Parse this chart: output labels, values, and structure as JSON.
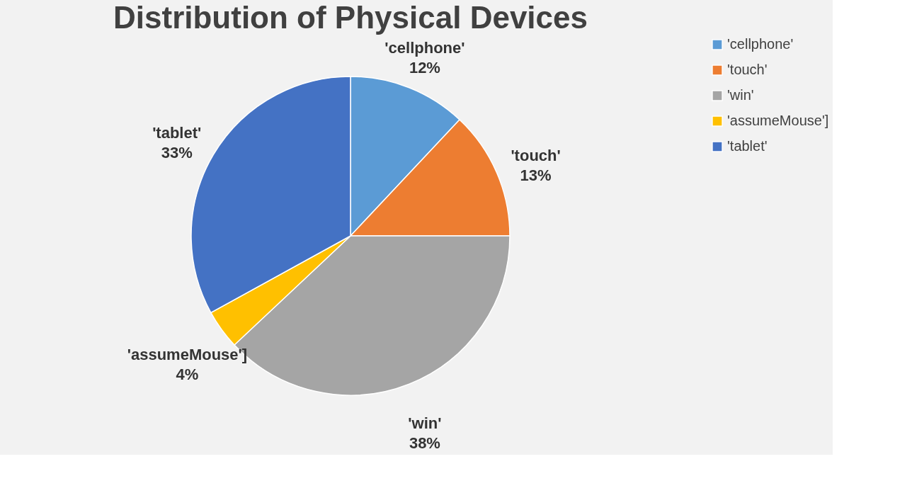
{
  "chart_data": {
    "type": "pie",
    "title": "Distribution of Physical Devices",
    "categories": [
      "'cellphone'",
      "'touch'",
      "'win'",
      "'assumeMouse']",
      "'tablet'"
    ],
    "values": [
      12,
      13,
      38,
      4,
      33
    ],
    "value_labels": [
      "12%",
      "13%",
      "38%",
      "4%",
      "33%"
    ],
    "colors": [
      "#5b9bd5",
      "#ed7d31",
      "#a5a5a5",
      "#ffc000",
      "#4472c4"
    ],
    "legend": "right"
  }
}
